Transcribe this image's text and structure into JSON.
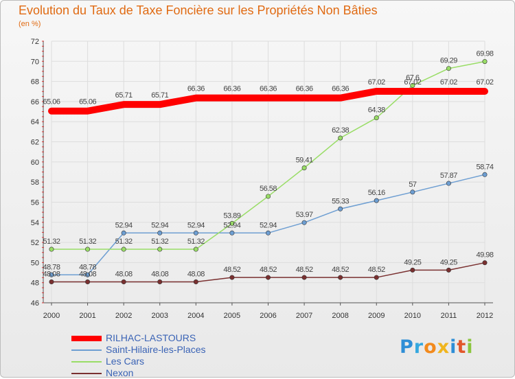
{
  "title": "Evolution du Taux de Taxe Foncière sur les Propriétés Non Bâties",
  "subtitle": "(en %)",
  "logo": {
    "letters": [
      "P",
      "r",
      "o",
      "x",
      "i",
      "t",
      "i"
    ],
    "colors": [
      "#2e8ed6",
      "#35a8df",
      "#f28a1d",
      "#f0b51e",
      "#2e8ed6",
      "#e2572b",
      "#8cc63f"
    ]
  },
  "colors": {
    "title": "#e06a12",
    "axis_text": "#333333",
    "grid": "#dddddd",
    "tick_red": "#d83232",
    "label_text": "#444444",
    "legend_text": "#3a63b5"
  },
  "chart_data": {
    "type": "line",
    "title": "Evolution du Taux de Taxe Foncière sur les Propriétés Non Bâties",
    "ylabel": "(en %)",
    "xlabel": "",
    "x": [
      "2000",
      "2001",
      "2002",
      "2003",
      "2004",
      "2005",
      "2006",
      "2007",
      "2008",
      "2009",
      "2010",
      "2011",
      "2012"
    ],
    "ylim": [
      46,
      72
    ],
    "yticks": [
      46,
      48,
      50,
      52,
      54,
      56,
      58,
      60,
      62,
      64,
      66,
      68,
      70,
      72
    ],
    "grid": true,
    "legend_position": "bottom-left",
    "series": [
      {
        "name": "RILHAC-LASTOURS",
        "color": "#ff0000",
        "values": [
          65.06,
          65.06,
          65.71,
          65.71,
          66.36,
          66.36,
          66.36,
          66.36,
          66.36,
          67.02,
          67.02,
          67.02,
          67.02
        ],
        "labels": [
          "65.06",
          "65.06",
          "65.71",
          "65.71",
          "66.36",
          "66.36",
          "66.36",
          "66.36",
          "66.36",
          "67.02",
          "67.02",
          "67.02",
          "67.02"
        ]
      },
      {
        "name": "Saint-Hilaire-les-Places",
        "color": "#6d9ed2",
        "values": [
          48.78,
          48.78,
          52.94,
          52.94,
          52.94,
          52.94,
          52.94,
          53.97,
          55.33,
          56.16,
          57,
          57.87,
          58.74
        ],
        "labels": [
          "48.78",
          "48.78",
          "52.94",
          "52.94",
          "52.94",
          "52.94",
          "52.94",
          "53.97",
          "55.33",
          "56.16",
          "57",
          "57.87",
          "58.74"
        ]
      },
      {
        "name": "Les Cars",
        "color": "#99dd66",
        "values": [
          51.32,
          51.32,
          51.32,
          51.32,
          51.32,
          53.89,
          56.58,
          59.41,
          62.38,
          64.38,
          67.6,
          69.29,
          69.98
        ],
        "labels": [
          "51.32",
          "51.32",
          "51.32",
          "51.32",
          "51.32",
          "53.89",
          "56.58",
          "59.41",
          "62.38",
          "64.38",
          "67.6",
          "69.29",
          "69.98"
        ]
      },
      {
        "name": "Nexon",
        "color": "#7a3030",
        "values": [
          48.08,
          48.08,
          48.08,
          48.08,
          48.08,
          48.52,
          48.52,
          48.52,
          48.52,
          48.52,
          49.25,
          49.25,
          49.98
        ],
        "labels": [
          "48.08",
          "48.08",
          "48.08",
          "48.08",
          "48.08",
          "48.52",
          "48.52",
          "48.52",
          "48.52",
          "48.52",
          "49.25",
          "49.25",
          "49.98"
        ]
      }
    ]
  }
}
